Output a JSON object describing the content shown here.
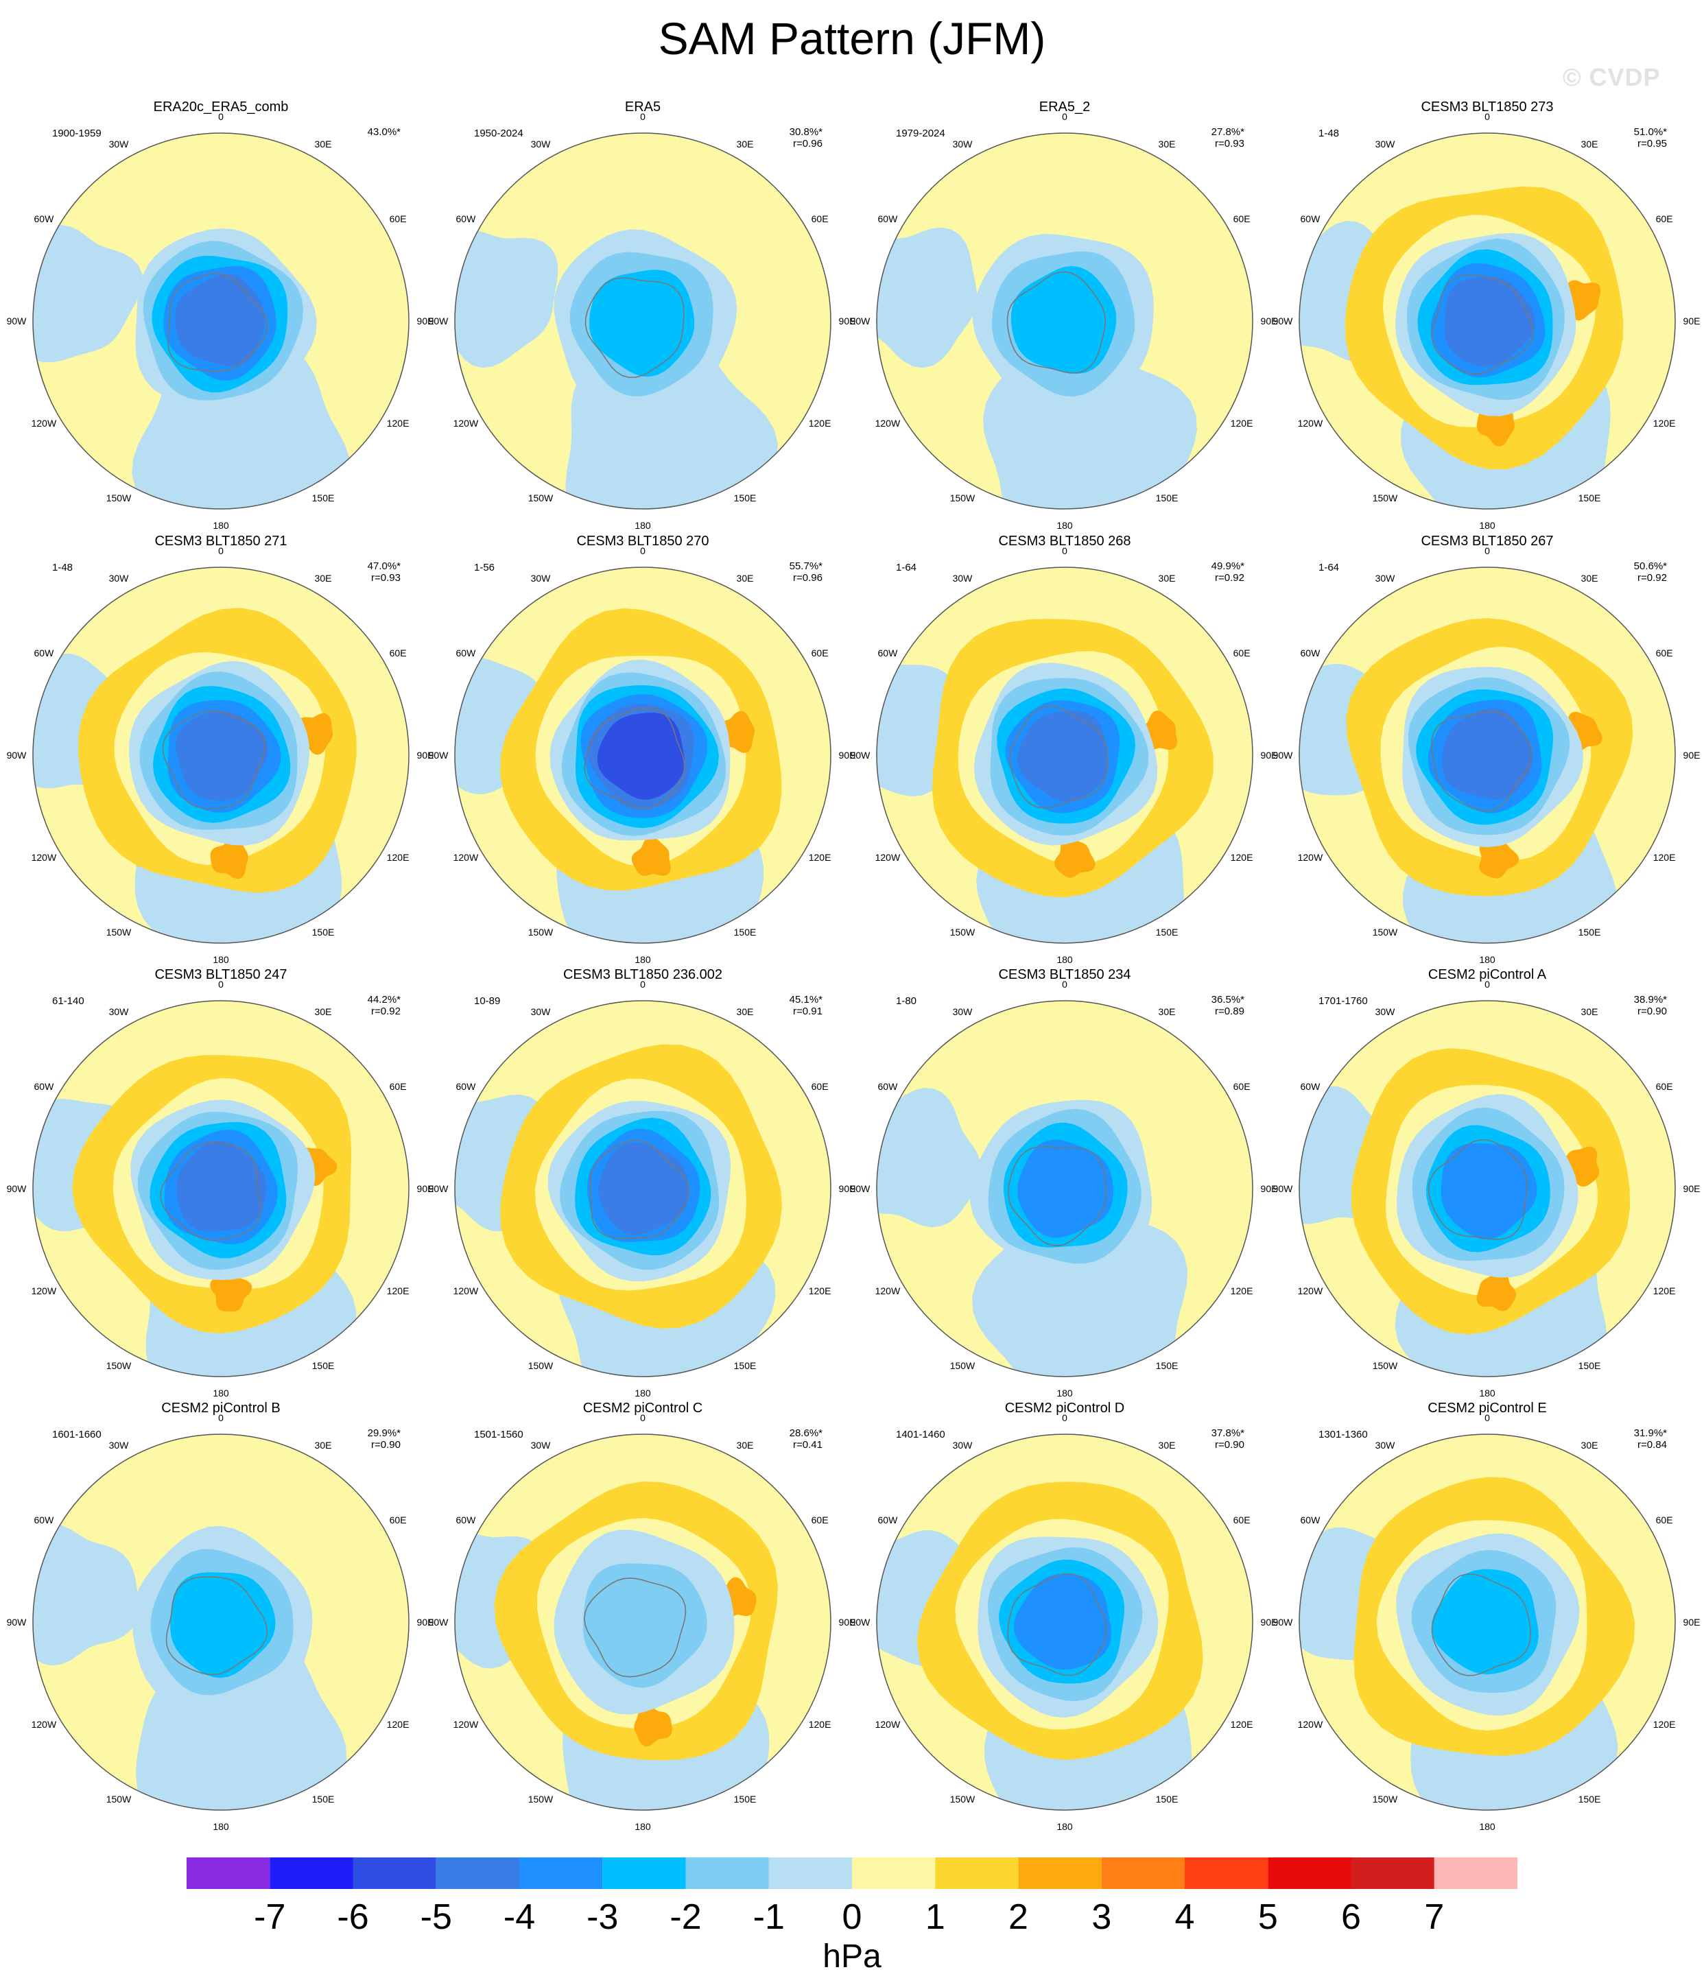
{
  "figure": {
    "title": "SAM Pattern (JFM)",
    "watermark": "© CVDP",
    "ocean_background": "#fcf8a5"
  },
  "chart_data": {
    "type": "heatmap",
    "projection": "south-polar-stereographic",
    "variable_units": "hPa",
    "longitude_labels": {
      "0": "0",
      "30E": "30E",
      "60E": "60E",
      "90E": "90E",
      "120E": "120E",
      "150E": "150E",
      "180": "180",
      "150W": "150W",
      "120W": "120W",
      "90W": "90W",
      "60W": "60W",
      "30W": "30W"
    },
    "colorbar": {
      "label": "hPa",
      "bins": [
        {
          "color": "#8a2be2"
        },
        {
          "color": "#1e1efa"
        },
        {
          "color": "#2f4ee4"
        },
        {
          "color": "#3a7de6"
        },
        {
          "color": "#1e90ff"
        },
        {
          "color": "#00bfff"
        },
        {
          "color": "#80cdf3"
        },
        {
          "color": "#b7def2"
        },
        {
          "color": "#fcf8a5"
        },
        {
          "color": "#fdd632"
        },
        {
          "color": "#fdab0c"
        },
        {
          "color": "#ff7f16"
        },
        {
          "color": "#ff3f14"
        },
        {
          "color": "#e80a0a"
        },
        {
          "color": "#d41e1e"
        },
        {
          "color": "#ffb6b6"
        }
      ],
      "tick_labels": [
        "-7",
        "-6",
        "-5",
        "-4",
        "-3",
        "-2",
        "-1",
        "0",
        "1",
        "2",
        "3",
        "4",
        "5",
        "6",
        "7"
      ]
    },
    "panels": [
      {
        "title": "ERA20c_ERA5_comb",
        "period": "1900-1959",
        "variance": "43.0%*",
        "pattern_corr": "",
        "center_min": -5,
        "ring_level": -1,
        "ring_max": 0
      },
      {
        "title": "ERA5",
        "period": "1950-2024",
        "variance": "30.8%*",
        "pattern_corr": "r=0.96",
        "center_min": -3,
        "ring_level": 0,
        "ring_max": 1
      },
      {
        "title": "ERA5_2",
        "period": "1979-2024",
        "variance": "27.8%*",
        "pattern_corr": "r=0.93",
        "center_min": -3,
        "ring_level": 0,
        "ring_max": 1
      },
      {
        "title": "CESM3 BLT1850 273",
        "period": "1-48",
        "variance": "51.0%*",
        "pattern_corr": "r=0.95",
        "center_min": -5,
        "ring_level": 1,
        "ring_max": 2
      },
      {
        "title": "CESM3 BLT1850 271",
        "period": "1-48",
        "variance": "47.0%*",
        "pattern_corr": "r=0.93",
        "center_min": -5,
        "ring_level": 1,
        "ring_max": 2
      },
      {
        "title": "CESM3 BLT1850 270",
        "period": "1-56",
        "variance": "55.7%*",
        "pattern_corr": "r=0.96",
        "center_min": -6,
        "ring_level": 1,
        "ring_max": 2
      },
      {
        "title": "CESM3 BLT1850 268",
        "period": "1-64",
        "variance": "49.9%*",
        "pattern_corr": "r=0.92",
        "center_min": -5,
        "ring_level": 1,
        "ring_max": 2
      },
      {
        "title": "CESM3 BLT1850 267",
        "period": "1-64",
        "variance": "50.6%*",
        "pattern_corr": "r=0.92",
        "center_min": -5,
        "ring_level": 1,
        "ring_max": 2
      },
      {
        "title": "CESM3 BLT1850 247",
        "period": "61-140",
        "variance": "44.2%*",
        "pattern_corr": "r=0.92",
        "center_min": -5,
        "ring_level": 1,
        "ring_max": 2
      },
      {
        "title": "CESM3 BLT1850 236.002",
        "period": "10-89",
        "variance": "45.1%*",
        "pattern_corr": "r=0.91",
        "center_min": -5,
        "ring_level": 1,
        "ring_max": 1
      },
      {
        "title": "CESM3 BLT1850 234",
        "period": "1-80",
        "variance": "36.5%*",
        "pattern_corr": "r=0.89",
        "center_min": -4,
        "ring_level": 0,
        "ring_max": 1
      },
      {
        "title": "CESM2 piControl A",
        "period": "1701-1760",
        "variance": "38.9%*",
        "pattern_corr": "r=0.90",
        "center_min": -4,
        "ring_level": 1,
        "ring_max": 2
      },
      {
        "title": "CESM2 piControl B",
        "period": "1601-1660",
        "variance": "29.9%*",
        "pattern_corr": "r=0.90",
        "center_min": -3,
        "ring_level": 0,
        "ring_max": 1
      },
      {
        "title": "CESM2 piControl C",
        "period": "1501-1560",
        "variance": "28.6%*",
        "pattern_corr": "r=0.41",
        "center_min": -2,
        "ring_level": 1,
        "ring_max": 2
      },
      {
        "title": "CESM2 piControl D",
        "period": "1401-1460",
        "variance": "37.8%*",
        "pattern_corr": "r=0.90",
        "center_min": -4,
        "ring_level": 1,
        "ring_max": 1
      },
      {
        "title": "CESM2 piControl E",
        "period": "1301-1360",
        "variance": "31.9%*",
        "pattern_corr": "r=0.84",
        "center_min": -3,
        "ring_level": 1,
        "ring_max": 1
      }
    ]
  }
}
